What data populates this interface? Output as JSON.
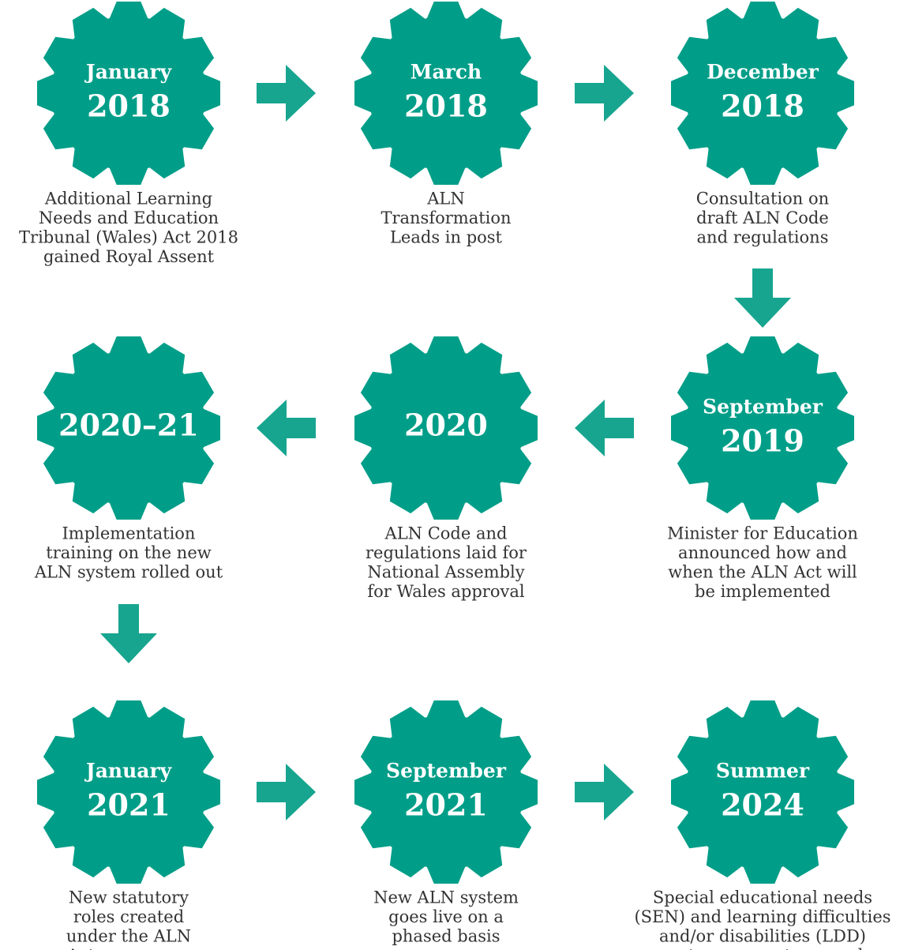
{
  "nodes": [
    {
      "month": "January",
      "year": "2018",
      "description": [
        "Additional Learning",
        "Needs and Education",
        "Tribunal (Wales) Act 2018",
        "gained Royal Assent"
      ]
    },
    {
      "month": "March",
      "year": "2018",
      "description": [
        "ALN",
        "Transformation",
        "Leads in post"
      ]
    },
    {
      "month": "December",
      "year": "2018",
      "description": [
        "Consultation on",
        "draft ALN Code",
        "and regulations"
      ]
    },
    {
      "month": "September",
      "year": "2019",
      "description": [
        "Minister for Education",
        "announced how and",
        "when the ALN Act will",
        "be implemented"
      ]
    },
    {
      "year": "2020",
      "description": [
        "ALN Code and",
        "regulations laid for",
        "National Assembly",
        "for Wales approval"
      ]
    },
    {
      "year": "2020–21",
      "description": [
        "Implementation",
        "training on the new",
        "ALN system rolled out"
      ]
    },
    {
      "month": "January",
      "year": "2021",
      "description": [
        "New statutory",
        "roles created",
        "under the ALN",
        "Act commence"
      ]
    },
    {
      "month": "September",
      "year": "2021",
      "description": [
        "New ALN system",
        "goes live on a",
        "phased basis"
      ]
    },
    {
      "month": "Summer",
      "year": "2024",
      "description": [
        "Special educational needs",
        "(SEN) and learning difficulties",
        "and/or disabilities (LDD)",
        "systems come to an end"
      ]
    }
  ]
}
